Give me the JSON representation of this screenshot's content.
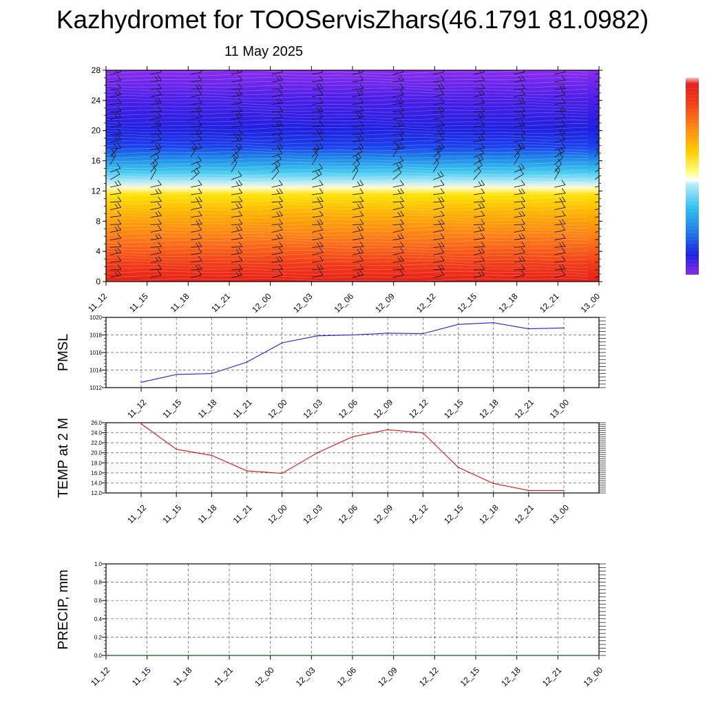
{
  "title": "Kazhydromet for TOOServisZhars(46.1791 81.0982)",
  "subtitle": "11 May 2025",
  "colors": {
    "pmsl_line": "#1f1fd6",
    "temp_line": "#e01010",
    "precip_line": "#0a5a0a",
    "contour_scale": [
      "#8a2be2",
      "#5a1ee8",
      "#2020e0",
      "#1a4cf0",
      "#1e9ee8",
      "#40d0f0",
      "#b8ecf8",
      "#ffffa0",
      "#ffe000",
      "#ffb000",
      "#ff7a10",
      "#ff4a1a",
      "#e02020"
    ]
  },
  "chart_data": [
    {
      "type": "heatmap",
      "title": "",
      "xlabel": "",
      "ylabel": "",
      "ylim": [
        0,
        28
      ],
      "yticks": [
        "0",
        "4",
        "8",
        "12",
        "16",
        "20",
        "24",
        "28"
      ],
      "categories": [
        "11_12",
        "11_15",
        "11_18",
        "11_21",
        "12_00",
        "12_03",
        "12_06",
        "12_09",
        "12_12",
        "12_15",
        "12_18",
        "12_21",
        "13_00"
      ],
      "colorbar": "vertical, right, unlabeled",
      "wind_barbs": true
    },
    {
      "type": "line",
      "title": "",
      "ylabel": "PMSL",
      "ylim": [
        1012,
        1020
      ],
      "yticks": [
        "1012",
        "1014",
        "1016",
        "1018",
        "1020"
      ],
      "categories": [
        "11_12",
        "11_15",
        "11_18",
        "11_21",
        "12_00",
        "12_03",
        "12_06",
        "12_09",
        "12_12",
        "12_15",
        "12_18",
        "12_21",
        "13_00"
      ],
      "values": [
        1012.6,
        1013.5,
        1013.6,
        1014.9,
        1017.1,
        1017.9,
        1018.0,
        1018.2,
        1018.15,
        1019.2,
        1019.4,
        1018.7,
        1018.8
      ],
      "grid": true
    },
    {
      "type": "line",
      "title": "",
      "ylabel": "TEMP at 2 M",
      "ylim": [
        12,
        26
      ],
      "yticks": [
        "12.0",
        "14.0",
        "16.0",
        "18.0",
        "20.0",
        "22.0",
        "24.0",
        "26.0"
      ],
      "categories": [
        "11_12",
        "11_15",
        "11_18",
        "11_21",
        "12_00",
        "12_03",
        "12_06",
        "12_09",
        "12_12",
        "12_15",
        "12_18",
        "12_21",
        "13_00"
      ],
      "values": [
        25.8,
        20.7,
        19.5,
        16.4,
        15.9,
        20.0,
        23.2,
        24.6,
        24.0,
        17.1,
        13.9,
        12.5,
        12.5
      ],
      "grid": true
    },
    {
      "type": "line",
      "title": "",
      "ylabel": "PRECIP, mm",
      "ylim": [
        0,
        1
      ],
      "yticks": [
        "0.0",
        "0.2",
        "0.4",
        "0.6",
        "0.8",
        "1.0"
      ],
      "categories": [
        "11_12",
        "11_15",
        "11_18",
        "11_21",
        "12_00",
        "12_03",
        "12_06",
        "12_09",
        "12_12",
        "12_15",
        "12_18",
        "12_21",
        "13_00"
      ],
      "values": [
        0,
        0,
        0,
        0,
        0,
        0,
        0,
        0,
        0,
        0,
        0,
        0,
        0
      ],
      "grid": true
    }
  ]
}
